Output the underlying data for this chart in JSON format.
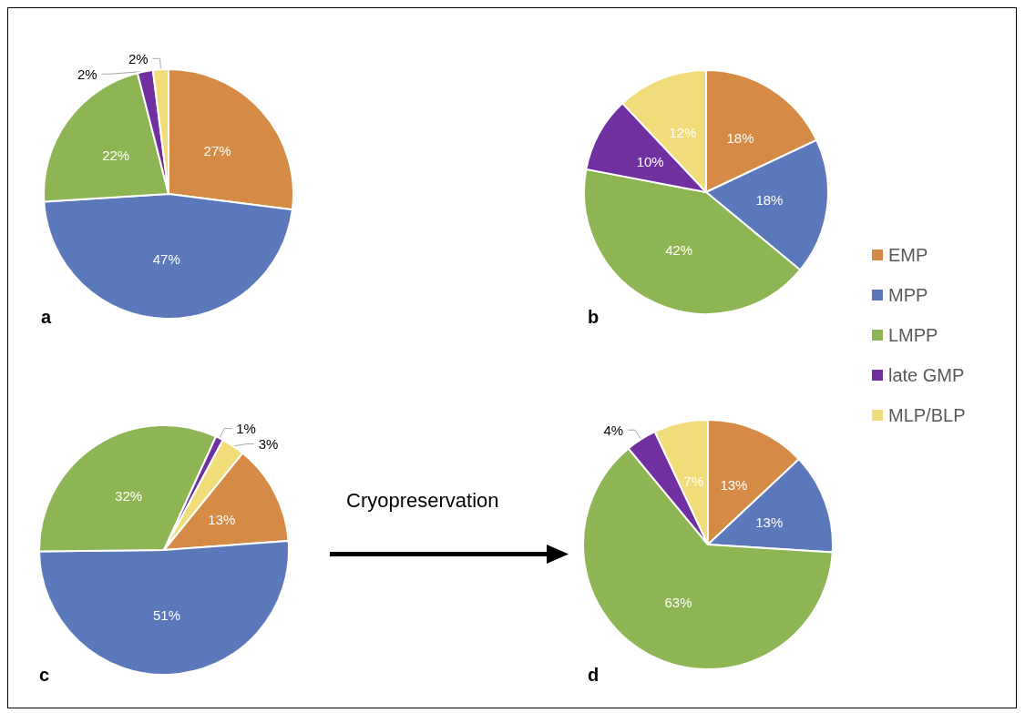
{
  "chart_data": [
    {
      "type": "pie",
      "title": "a",
      "values": [
        27,
        47,
        22,
        2,
        2
      ],
      "value_labels": [
        "27%",
        "47%",
        "22%",
        "2%",
        "2%"
      ],
      "colors": [
        "#d58b45",
        "#5b78bb",
        "#8db554",
        "#7030a0",
        "#f0dc78"
      ]
    },
    {
      "type": "pie",
      "title": "b",
      "categories": [
        "EMP",
        "MPP",
        "LMPP",
        "late GMP",
        "MLP/BLP"
      ],
      "values": [
        18,
        18,
        42,
        10,
        12
      ],
      "value_labels": [
        "18%",
        "18%",
        "42%",
        "10%",
        "12%"
      ],
      "colors": [
        "#d58b45",
        "#5b78bb",
        "#8db554",
        "#7030a0",
        "#f0dc78"
      ],
      "legend": "right"
    },
    {
      "type": "pie",
      "title": "c",
      "values": [
        13,
        51,
        32,
        1,
        3
      ],
      "value_labels": [
        "13%",
        "51%",
        "32%",
        "1%",
        "3%"
      ],
      "colors": [
        "#d58b45",
        "#5b78bb",
        "#8db554",
        "#7030a0",
        "#f0dc78"
      ],
      "annotations": [
        "Cryopreservation"
      ]
    },
    {
      "type": "pie",
      "title": "d",
      "values": [
        13,
        13,
        63,
        4,
        7
      ],
      "value_labels": [
        "13%",
        "13%",
        "63%",
        "4%",
        "7%"
      ],
      "colors": [
        "#d58b45",
        "#5b78bb",
        "#8db554",
        "#7030a0",
        "#f0dc78"
      ]
    }
  ]
}
